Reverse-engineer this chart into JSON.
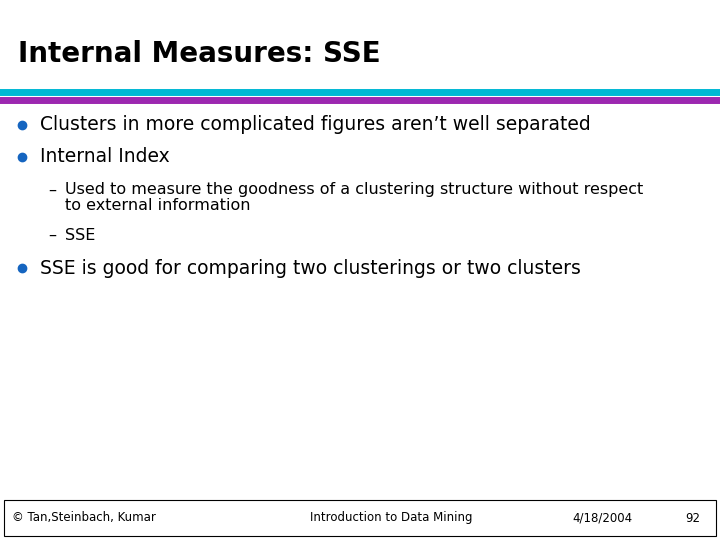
{
  "title": "Internal Measures: SSE",
  "title_color": "#000000",
  "title_fontsize": 20,
  "bg_color": "#ffffff",
  "line1_color": "#00B8D4",
  "line2_color": "#9C27B0",
  "bullet_color": "#1565C0",
  "bullet1": "Clusters in more complicated figures aren’t well separated",
  "bullet2": "Internal Index",
  "sub1_line1": "Used to measure the goodness of a clustering structure without respect",
  "sub1_line2": "to external information",
  "sub2": "SSE",
  "bullet3": "SSE is good for comparing two clusterings or two clusters",
  "footer_left": "© Tan,Steinbach, Kumar",
  "footer_center": "Introduction to Data Mining",
  "footer_right": "4/18/2004",
  "footer_page": "92",
  "footer_fontsize": 8.5,
  "body_fontsize": 13.5,
  "sub_fontsize": 11.5
}
